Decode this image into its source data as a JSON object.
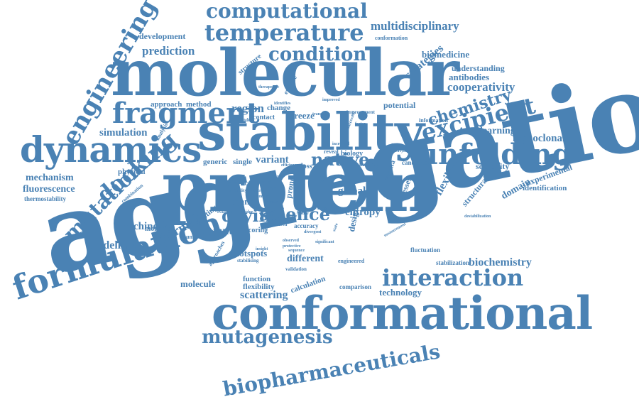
{
  "palette": {
    "word": "#4a82b4",
    "background": "#ffffff"
  },
  "words": {
    "aggregation": "aggregation",
    "protein": "protein",
    "molecular": "molecular",
    "stability": "stability",
    "conformational": "conformational",
    "dynamics": "dynamics",
    "formulation": "formulation",
    "unfolding": "unfolding",
    "fragment": "fragment",
    "excipient": "excipient",
    "temperature": "temperature",
    "computational": "computational",
    "engineering": "engineering",
    "condition": "condition",
    "docking": "docking",
    "interaction": "interaction",
    "mutagenesis": "mutagenesis",
    "biopharmaceuticals": "biopharmaceuticals",
    "mutation": "mutation",
    "science": "science",
    "chemistry": "chemistry",
    "drying": "drying",
    "native": "native",
    "multidisciplinary": "multidisciplinary",
    "cooperativity": "cooperativity",
    "prediction": "prediction",
    "strategies": "strategies",
    "simulation": "simulation",
    "region": "region",
    "thermal": "thermal",
    "machine": "machine",
    "modelling": "modelling",
    "mutant": "mutant",
    "variant": "variant",
    "biochemistry": "biochemistry",
    "scattering": "scattering",
    "mechanism": "mechanism",
    "fluorescence": "fluorescence",
    "monoclonal": "monoclonal",
    "learning": "learning",
    "flexible": "flexible",
    "domain": "domain",
    "structural": "structural",
    "global": "global",
    "entropy": "entropy",
    "different": "different",
    "hotspots": "hotspots",
    "molecule": "molecule",
    "technology": "technology",
    "biomedicine": "biomedicine",
    "antibodies": "antibodies",
    "understanding": "understanding",
    "development": "development",
    "approach": "approach",
    "method": "method",
    "potential": "potential",
    "solubility": "solubility",
    "experimental": "experimental",
    "identification": "identification",
    "physical": "physical",
    "thermostability": "thermostability",
    "combination": "combination",
    "ligand": "ligand",
    "kinetic": "kinetic",
    "generic": "generic",
    "single": "single",
    "melting": "melting",
    "monomer": "monomer",
    "unfolded": "unfolded",
    "function": "function",
    "flexibility": "flexibility",
    "calculation": "calculation",
    "fluctuation": "fluctuation",
    "stabilization": "stabilization",
    "comparison": "comparison",
    "design": "design",
    "stresses": "stresses",
    "rosetta": "rosetta",
    "candidate": "candidate",
    "increase": "increase",
    "loss": "loss",
    "biology": "biology",
    "reveal": "reveal",
    "change": "change",
    "freeze": "freeze",
    "contact": "contact",
    "expanded": "expanded",
    "information": "information",
    "improvement": "improvement",
    "conformation": "conformation",
    "structure": "structure",
    "enzyme": "enzyme",
    "analysis": "analysis",
    "scoring": "scoring",
    "accuracy": "accuracy",
    "engineered": "engineered",
    "validation": "validation",
    "destabilization": "destabilization",
    "approaches": "approaches",
    "stabilising": "stabilising",
    "instability": "instability",
    "spectra": "spectra",
    "prone": "prone",
    "more": "more",
    "hidden": "hidden",
    "evaluate": "evaluate",
    "induced": "induced",
    "identifies": "identifies",
    "transition": "transition",
    "improved": "improved",
    "therapeutic": "therapeutic",
    "underlying": "underlying",
    "factor": "factor",
    "successful": "successful",
    "increased": "increased",
    "reduce": "reduce",
    "phase": "phase",
    "rate": "rate",
    "stable": "stable",
    "smaller": "smaller",
    "observed": "observed",
    "protective": "protective",
    "sequence": "sequence",
    "residue": "residue",
    "variable": "variable",
    "significant": "significant",
    "divergent": "divergent",
    "insight": "insight",
    "measurement": "measurement",
    "range": "range",
    "efficiency": "efficiency",
    "bridge": "bridge",
    "sugar": "sugar",
    "guide": "guide",
    "state": "state"
  }
}
